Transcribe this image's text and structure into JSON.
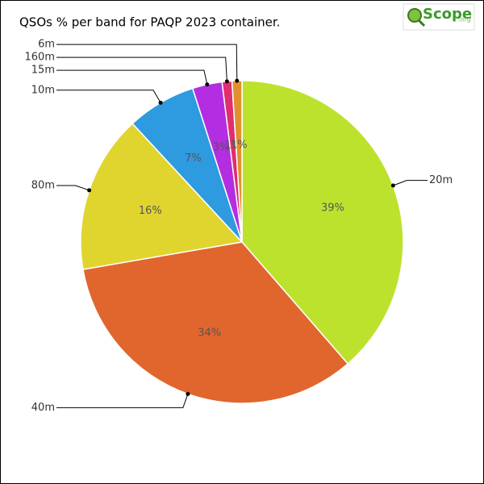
{
  "chart_data": {
    "type": "pie",
    "title": "QSOs % per band for PAQP 2023 container.",
    "categories": [
      "20m",
      "40m",
      "80m",
      "10m",
      "15m",
      "160m",
      "6m"
    ],
    "values": [
      39,
      34,
      16,
      7,
      3,
      1,
      1
    ],
    "value_labels": [
      "39%",
      "34%",
      "16%",
      "7%",
      "3%",
      "1%",
      "1%"
    ],
    "colors": [
      "#bde22e",
      "#e0662e",
      "#e0d42e",
      "#2e9ae0",
      "#b22ee0",
      "#e02e6e",
      "#e0902e"
    ]
  },
  "logo": {
    "name": "Scope",
    "domain": ".org"
  }
}
